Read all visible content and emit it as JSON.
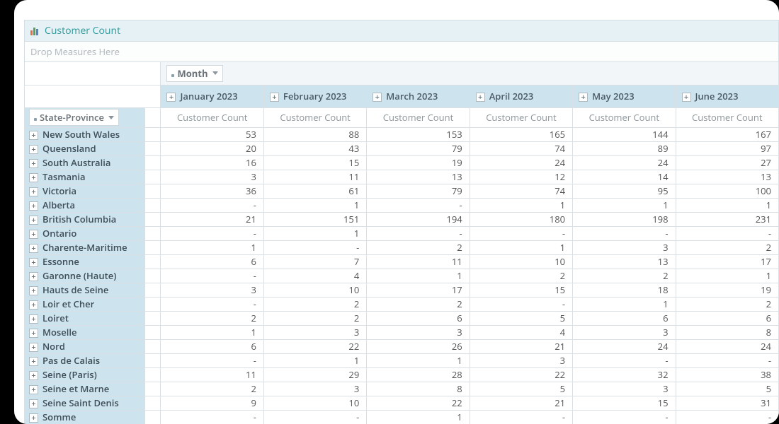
{
  "title": "Customer Count",
  "drop_zone_text": "Drop Measures Here",
  "column_dimension_label": "Month",
  "row_dimension_label": "State-Province",
  "measure_label": "Customer Count",
  "expand_glyph": "+",
  "months": [
    "January 2023",
    "February 2023",
    "March 2023",
    "April 2023",
    "May 2023",
    "June 2023"
  ],
  "rows": [
    {
      "label": "New South Wales",
      "values": [
        "53",
        "88",
        "153",
        "165",
        "144",
        "167"
      ]
    },
    {
      "label": "Queensland",
      "values": [
        "20",
        "43",
        "79",
        "74",
        "89",
        "97"
      ]
    },
    {
      "label": "South Australia",
      "values": [
        "16",
        "15",
        "19",
        "24",
        "24",
        "27"
      ]
    },
    {
      "label": "Tasmania",
      "values": [
        "3",
        "11",
        "13",
        "12",
        "14",
        "13"
      ]
    },
    {
      "label": "Victoria",
      "values": [
        "36",
        "61",
        "79",
        "74",
        "95",
        "100"
      ]
    },
    {
      "label": "Alberta",
      "values": [
        "-",
        "1",
        "-",
        "1",
        "1",
        "1"
      ]
    },
    {
      "label": "British Columbia",
      "values": [
        "21",
        "151",
        "194",
        "180",
        "198",
        "231"
      ]
    },
    {
      "label": "Ontario",
      "values": [
        "-",
        "1",
        "-",
        "-",
        "-",
        "-"
      ]
    },
    {
      "label": "Charente-Maritime",
      "values": [
        "1",
        "-",
        "2",
        "1",
        "3",
        "2"
      ]
    },
    {
      "label": "Essonne",
      "values": [
        "6",
        "7",
        "11",
        "10",
        "13",
        "17"
      ]
    },
    {
      "label": "Garonne (Haute)",
      "values": [
        "-",
        "4",
        "1",
        "2",
        "2",
        "1"
      ]
    },
    {
      "label": "Hauts de Seine",
      "values": [
        "3",
        "10",
        "17",
        "15",
        "18",
        "19"
      ]
    },
    {
      "label": "Loir et Cher",
      "values": [
        "-",
        "2",
        "2",
        "-",
        "1",
        "2"
      ]
    },
    {
      "label": "Loiret",
      "values": [
        "2",
        "2",
        "6",
        "5",
        "6",
        "6"
      ]
    },
    {
      "label": "Moselle",
      "values": [
        "1",
        "3",
        "3",
        "4",
        "3",
        "8"
      ]
    },
    {
      "label": "Nord",
      "values": [
        "6",
        "22",
        "26",
        "21",
        "24",
        "24"
      ]
    },
    {
      "label": "Pas de Calais",
      "values": [
        "-",
        "1",
        "1",
        "3",
        "-",
        "-"
      ]
    },
    {
      "label": "Seine (Paris)",
      "values": [
        "11",
        "29",
        "28",
        "22",
        "32",
        "38"
      ]
    },
    {
      "label": "Seine et Marne",
      "values": [
        "2",
        "3",
        "8",
        "5",
        "3",
        "5"
      ]
    },
    {
      "label": "Seine Saint Denis",
      "values": [
        "9",
        "10",
        "22",
        "21",
        "15",
        "31"
      ]
    },
    {
      "label": "Somme",
      "values": [
        "-",
        "-",
        "1",
        "-",
        "-",
        "-"
      ]
    }
  ],
  "colors": {
    "header_bg": "#cde3ee",
    "panel_bg": "#e6f1f6",
    "border": "#d9dfe3",
    "accent": "#2f9a9a"
  }
}
